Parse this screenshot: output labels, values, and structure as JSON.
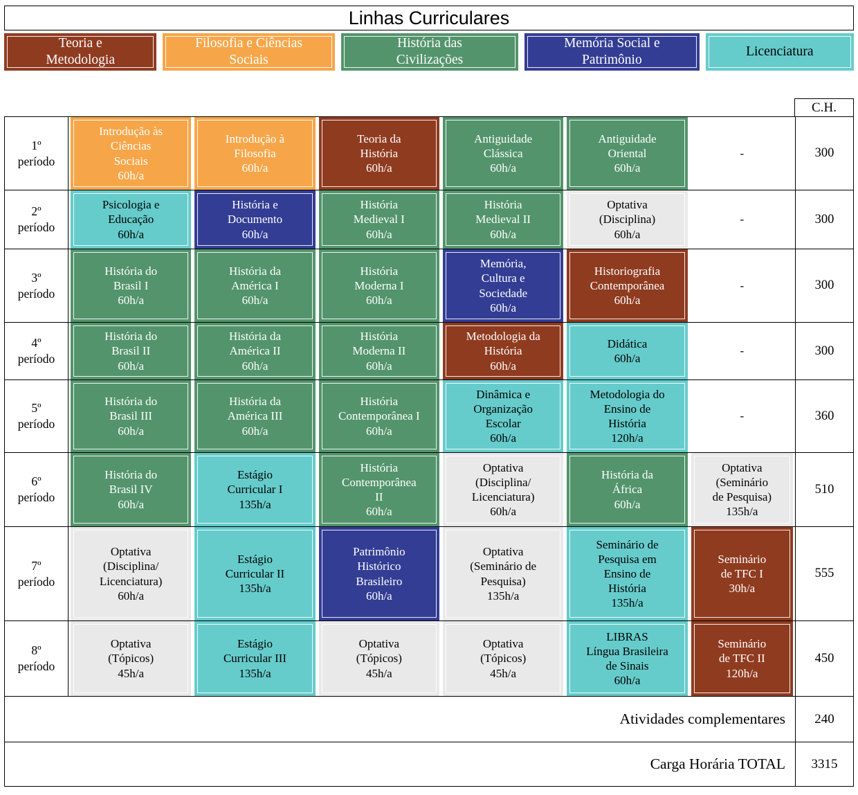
{
  "title": "Linhas Curriculares",
  "ch_header": "C.H.",
  "categories": {
    "teoria": {
      "bg": "#8F3B20",
      "text": "#FFFFFF"
    },
    "filosofia": {
      "bg": "#F6A649",
      "text": "#FFFFFF"
    },
    "historia": {
      "bg": "#53946C",
      "text": "#FFFFFF"
    },
    "memoria": {
      "bg": "#333D94",
      "text": "#FFFFFF"
    },
    "licenciatura": {
      "bg": "#66CBCB",
      "text": "#000000"
    },
    "optativa": {
      "bg": "#E9E9E9",
      "text": "#000000"
    },
    "none": {
      "bg": "transparent",
      "text": "#000000"
    }
  },
  "legend": [
    {
      "key": "teoria",
      "label": "Teoria e\nMetodologia"
    },
    {
      "key": "filosofia",
      "label": "Filosofia e Ciências\nSociais"
    },
    {
      "key": "historia",
      "label": "História das\nCivilizações"
    },
    {
      "key": "memoria",
      "label": "Memória Social e\nPatrimônio"
    },
    {
      "key": "licenciatura",
      "label": "Licenciatura"
    }
  ],
  "rows": [
    {
      "period": "1º\nperíodo",
      "ch": "300",
      "courses": [
        {
          "text": "Introdução às\nCiências\nSociais\n60h/a",
          "category": "filosofia"
        },
        {
          "text": "Introdução à\nFilosofia\n60h/a",
          "category": "filosofia"
        },
        {
          "text": "Teoria da\nHistória\n60h/a",
          "category": "teoria"
        },
        {
          "text": "Antiguidade\nClássica\n60h/a",
          "category": "historia"
        },
        {
          "text": "Antiguidade\nOriental\n60h/a",
          "category": "historia"
        },
        {
          "text": "-",
          "category": "none"
        }
      ]
    },
    {
      "period": "2º\nperíodo",
      "ch": "300",
      "courses": [
        {
          "text": "Psicologia e\nEducação\n60h/a",
          "category": "licenciatura"
        },
        {
          "text": "História e\nDocumento\n60h/a",
          "category": "memoria"
        },
        {
          "text": "História\nMedieval I\n60h/a",
          "category": "historia"
        },
        {
          "text": "História\nMedieval II\n60h/a",
          "category": "historia"
        },
        {
          "text": "Optativa\n(Disciplina)\n60h/a",
          "category": "optativa"
        },
        {
          "text": "-",
          "category": "none"
        }
      ]
    },
    {
      "period": "3º\nperíodo",
      "ch": "300",
      "courses": [
        {
          "text": "História do\nBrasil I\n60h/a",
          "category": "historia"
        },
        {
          "text": "História da\nAmérica I\n60h/a",
          "category": "historia"
        },
        {
          "text": "História\nModerna I\n60h/a",
          "category": "historia"
        },
        {
          "text": "Memória,\nCultura e\nSociedade\n60h/a",
          "category": "memoria"
        },
        {
          "text": "Historiografia\nContemporânea\n60h/a",
          "category": "teoria"
        },
        {
          "text": "-",
          "category": "none"
        }
      ]
    },
    {
      "period": "4º\nperíodo",
      "ch": "300",
      "courses": [
        {
          "text": "História do\nBrasil II\n60h/a",
          "category": "historia"
        },
        {
          "text": "História da\nAmérica II\n60h/a",
          "category": "historia"
        },
        {
          "text": "História\nModerna II\n60h/a",
          "category": "historia"
        },
        {
          "text": "Metodologia da\nHistória\n60h/a",
          "category": "teoria"
        },
        {
          "text": "Didática\n60h/a",
          "category": "licenciatura"
        },
        {
          "text": "-",
          "category": "none"
        }
      ]
    },
    {
      "period": "5º\nperíodo",
      "ch": "360",
      "courses": [
        {
          "text": "História do\nBrasil III\n60h/a",
          "category": "historia"
        },
        {
          "text": "História da\nAmérica III\n60h/a",
          "category": "historia"
        },
        {
          "text": "História\nContemporânea I\n60h/a",
          "category": "historia"
        },
        {
          "text": "Dinâmica e\nOrganização\nEscolar\n60h/a",
          "category": "licenciatura"
        },
        {
          "text": "Metodologia do\nEnsino de\nHistória\n120h/a",
          "category": "licenciatura"
        },
        {
          "text": "-",
          "category": "none"
        }
      ]
    },
    {
      "period": "6º\nperíodo",
      "ch": "510",
      "courses": [
        {
          "text": "História do\nBrasil IV\n60h/a",
          "category": "historia"
        },
        {
          "text": "Estágio\nCurricular I\n135h/a",
          "category": "licenciatura"
        },
        {
          "text": "História\nContemporânea\nII\n60h/a",
          "category": "historia"
        },
        {
          "text": "Optativa\n(Disciplina/\nLicenciatura)\n60h/a",
          "category": "optativa"
        },
        {
          "text": "História da\nÁfrica\n60h/a",
          "category": "historia"
        },
        {
          "text": "Optativa\n(Seminário\nde Pesquisa)\n135h/a",
          "category": "optativa"
        }
      ]
    },
    {
      "period": "7º\nperíodo",
      "ch": "555",
      "courses": [
        {
          "text": "Optativa\n(Disciplina/\nLicenciatura)\n60h/a",
          "category": "optativa"
        },
        {
          "text": "Estágio\nCurricular II\n135h/a",
          "category": "licenciatura"
        },
        {
          "text": "Patrimônio\nHistórico\nBrasileiro\n60h/a",
          "category": "memoria"
        },
        {
          "text": "Optativa\n(Seminário de\nPesquisa)\n135h/a",
          "category": "optativa"
        },
        {
          "text": "Seminário de\nPesquisa em\nEnsino de\nHistória\n135h/a",
          "category": "licenciatura"
        },
        {
          "text": "Seminário\nde TFC I\n30h/a",
          "category": "teoria"
        }
      ]
    },
    {
      "period": "8º\nperíodo",
      "ch": "450",
      "courses": [
        {
          "text": "Optativa\n(Tópicos)\n45h/a",
          "category": "optativa"
        },
        {
          "text": "Estágio\nCurricular III\n135h/a",
          "category": "licenciatura"
        },
        {
          "text": "Optativa\n(Tópicos)\n45h/a",
          "category": "optativa"
        },
        {
          "text": "Optativa\n(Tópicos)\n45h/a",
          "category": "optativa"
        },
        {
          "text": "LIBRAS\nLíngua Brasileira\nde Sinais\n60h/a",
          "category": "licenciatura"
        },
        {
          "text": "Seminário\nde TFC II\n120h/a",
          "category": "teoria"
        }
      ]
    }
  ],
  "footer": [
    {
      "label": "Atividades complementares",
      "ch": "240"
    },
    {
      "label": "Carga Horária TOTAL",
      "ch": "3315"
    }
  ]
}
